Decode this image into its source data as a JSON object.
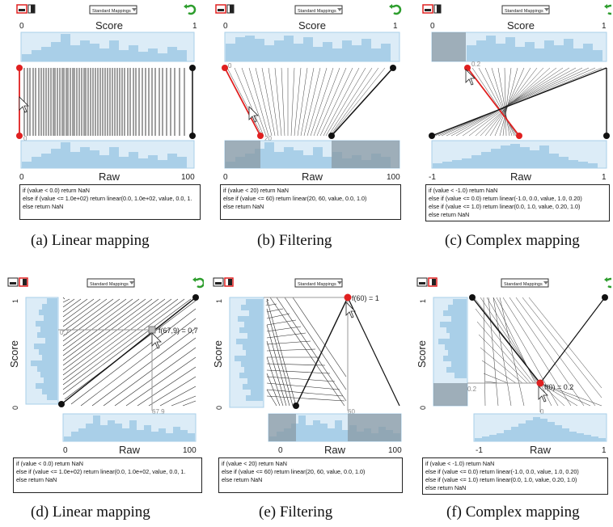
{
  "toolbar": {
    "mappings_label": "Standard Mappings"
  },
  "panels": [
    {
      "id": "a",
      "layout": "h",
      "caption": "(a)  Linear mapping",
      "score_label": "Score",
      "raw_label": "Raw",
      "score_min": "0",
      "score_max": "1",
      "raw_min": "0",
      "raw_max": "100",
      "point_label_top": "",
      "point_label_bottom": "0",
      "code": [
        "if (value < 0.0) return NaN",
        "else if (value <= 1.0e+02) return linear(0.0, 1.0e+02, value, 0.0, 1.",
        "else return NaN"
      ]
    },
    {
      "id": "b",
      "layout": "h",
      "caption": "(b)  Filtering",
      "score_label": "Score",
      "raw_label": "Raw",
      "score_min": "0",
      "score_max": "1",
      "raw_min": "0",
      "raw_max": "100",
      "point_label_top": "0",
      "point_label_bottom": "20",
      "code": [
        "if (value < 20) return NaN",
        "else if (value <= 60) return linear(20, 60, value, 0.0, 1.0)",
        "else return NaN"
      ]
    },
    {
      "id": "c",
      "layout": "h",
      "caption": "(c)  Complex mapping",
      "score_label": "Score",
      "raw_label": "Raw",
      "score_min": "0",
      "score_max": "1",
      "raw_min": "-1",
      "raw_max": "1",
      "point_label_top": "0.2",
      "point_label_bottom": "",
      "code": [
        "if (value < -1.0) return NaN",
        "else if (value <= 0.0) return linear(-1.0, 0.0, value, 1.0, 0.20)",
        "else if (value <= 1.0) return linear(0.0, 1.0, value, 0.20, 1.0)",
        "else return NaN"
      ]
    },
    {
      "id": "d",
      "layout": "v",
      "caption": "(d)  Linear mapping",
      "score_label": "Score",
      "raw_label": "Raw",
      "score_min": "0",
      "score_max": "1",
      "raw_min": "0",
      "raw_max": "100",
      "point_label": "f(67,9) = 0,7",
      "guide_x_label": "67,9",
      "guide_y_label": "0,7",
      "code": [
        "if (value < 0.0) return NaN",
        "else if (value <= 1.0e+02) return linear(0.0, 1.0e+02, value, 0.0, 1.",
        "else return NaN"
      ]
    },
    {
      "id": "e",
      "layout": "v",
      "caption": "(e)  Filtering",
      "score_label": "Score",
      "raw_label": "Raw",
      "score_min": "0",
      "score_max": "1",
      "raw_min": "0",
      "raw_max": "100",
      "point_label": "f(60) = 1",
      "guide_x_label": "60",
      "guide_y_label": "1",
      "code": [
        "if (value < 20) return NaN",
        "else if (value <= 60) return linear(20, 60, value, 0.0, 1.0)",
        "else return NaN"
      ]
    },
    {
      "id": "f",
      "layout": "v",
      "caption": "(f)  Complex mapping",
      "score_label": "Score",
      "raw_label": "Raw",
      "score_min": "0",
      "score_max": "1",
      "raw_min": "-1",
      "raw_max": "1",
      "point_label": "f(0) = 0.2",
      "guide_x_label": "0",
      "guide_y_label": "0.2",
      "code": [
        "if (value < -1.0) return NaN",
        "else if (value <= 0.0) return linear(-1.0, 0.0, value, 1.0, 0.20)",
        "else if (value <= 1.0) return linear(0.0, 1.0, value, 0.20, 1.0)",
        "else return NaN"
      ]
    }
  ],
  "colors": {
    "hist_fill": "#a9cfe8",
    "hist_bg": "#dcecf7",
    "point_active": "#e02020",
    "point": "#111111",
    "undo": "#2e9e2e",
    "filter_shade": "#8a9aa4"
  }
}
